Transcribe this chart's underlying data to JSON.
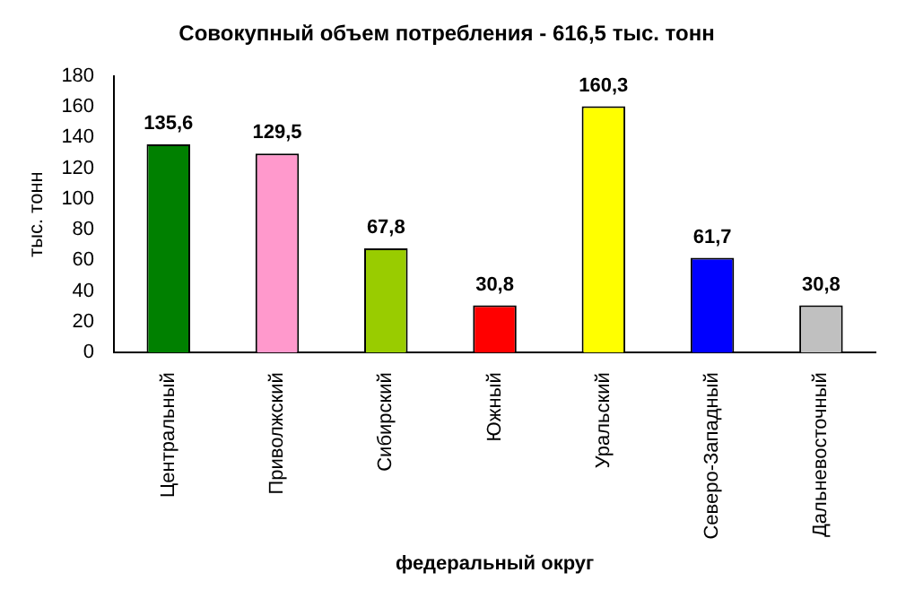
{
  "chart_data": {
    "type": "bar",
    "title": "Совокупный объем потребления - 616,5 тыс. тонн",
    "xlabel": "федеральный округ",
    "ylabel": "тыс. тонн",
    "categories": [
      "Центральный",
      "Приволжский",
      "Сибирский",
      "Южный",
      "Уральский",
      "Северо-Западный",
      "Дальневосточный"
    ],
    "values": [
      135.6,
      129.5,
      67.8,
      30.8,
      160.3,
      61.7,
      30.8
    ],
    "colors": [
      "#008000",
      "#ff99cc",
      "#99cc00",
      "#ff0000",
      "#ffff00",
      "#0000ff",
      "#c0c0c0"
    ],
    "value_labels": [
      "135,6",
      "129,5",
      "67,8",
      "30,8",
      "160,3",
      "61,7",
      "30,8"
    ],
    "ylim": [
      0,
      180
    ],
    "yticks": [
      0,
      20,
      40,
      60,
      80,
      100,
      120,
      140,
      160,
      180
    ],
    "grid": false,
    "legend": false
  }
}
